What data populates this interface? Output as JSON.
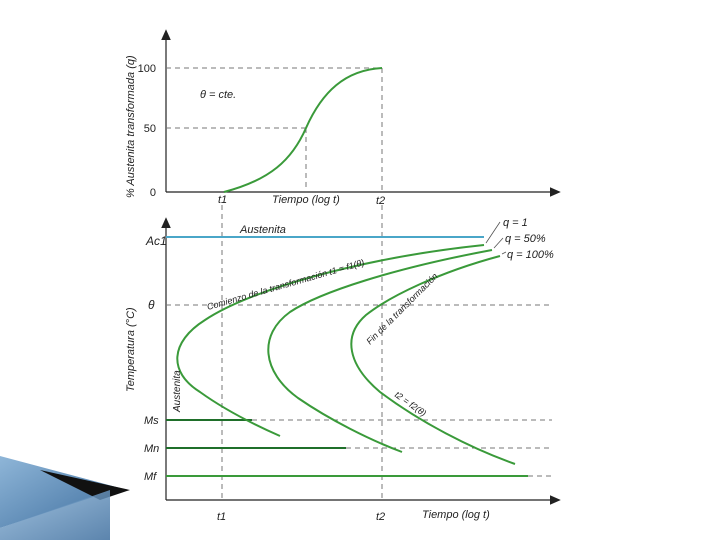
{
  "top_chart": {
    "y_axis_label": "% Austenita transformada (q)",
    "ticks": [
      "0",
      "50",
      "100"
    ],
    "note": "θ = cte.",
    "t1_label": "t1",
    "t2_label": "t2",
    "x_axis_label": "Tiempo (log t)"
  },
  "bottom_chart": {
    "y_axis_label": "Temperatura (°C)",
    "ac1_label": "Ac1",
    "theta_label": "θ",
    "ms_label": "Ms",
    "mn_label": "Mn",
    "mf_label": "Mf",
    "austenita_top": "Austenita",
    "austenita_side": "Austenita",
    "curve_start_label": "Comienzo de la transformación t1 = f1(θ)",
    "curve_end_label": "Fin de la transformación",
    "t2_func_label": "t2 = f2(θ)",
    "t1_label": "t1",
    "t2_label": "t2",
    "x_axis_label": "Tiempo (log t)",
    "legend": [
      "q = 1",
      "q = 50%",
      "q = 100%"
    ]
  },
  "colors": {
    "curve": "#3a9a3a",
    "ac1_line": "#4aa6c8",
    "dashed": "#777777",
    "arrow_dark": "#1a1a1a",
    "arrow_blue": "#4a7fb0"
  },
  "icons": {
    "corner": "decorative-arrow-shape"
  }
}
